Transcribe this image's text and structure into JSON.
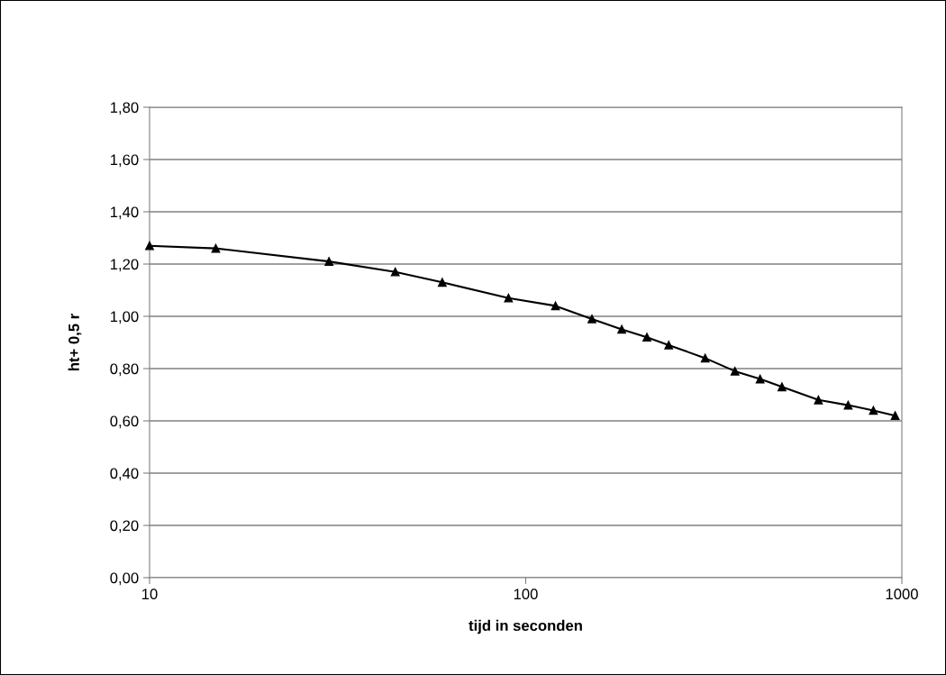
{
  "chart_data": {
    "type": "line",
    "xlabel": "tijd in seconden",
    "ylabel": "ht+ 0,5 r",
    "x": [
      10,
      15,
      30,
      45,
      60,
      90,
      120,
      150,
      180,
      210,
      240,
      300,
      360,
      420,
      480,
      600,
      720,
      840,
      960
    ],
    "series": [
      {
        "color": "#000000",
        "values": [
          1.27,
          1.26,
          1.21,
          1.17,
          1.13,
          1.07,
          1.04,
          0.99,
          0.95,
          0.92,
          0.89,
          0.84,
          0.79,
          0.76,
          0.73,
          0.68,
          0.66,
          0.64,
          0.62
        ]
      }
    ],
    "log": "x",
    "xlim": [
      10,
      1000
    ],
    "xticks": [
      10,
      100,
      1000
    ],
    "ylim": [
      0,
      1.8
    ],
    "yticks": [
      {
        "value": 0,
        "label": "0,00"
      },
      {
        "value": 0.2,
        "label": "0,20"
      },
      {
        "value": 0.4,
        "label": "0,40"
      },
      {
        "value": 0.6,
        "label": "0,60"
      },
      {
        "value": 0.8,
        "label": "0,80"
      },
      {
        "value": 1.0,
        "label": "1,00"
      },
      {
        "value": 1.2,
        "label": "1,20"
      },
      {
        "value": 1.4,
        "label": "1,40"
      },
      {
        "value": 1.6,
        "label": "1,60"
      },
      {
        "value": 1.8,
        "label": "1,80"
      }
    ],
    "grid": "y",
    "marker": "triangle",
    "line_style": "solid"
  }
}
